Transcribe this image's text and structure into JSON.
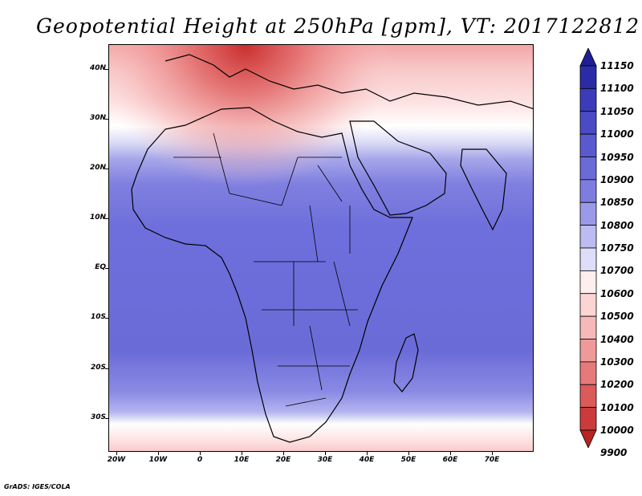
{
  "title": "Geopotential Height at 250hPa [gpm], VT: 2017122812",
  "footer": "GrADS: IGES/COLA",
  "axes": {
    "lat_labels": [
      "40N",
      "30N",
      "20N",
      "10N",
      "EQ",
      "10S",
      "20S",
      "30S"
    ],
    "lon_labels": [
      "20W",
      "10W",
      "0",
      "10E",
      "20E",
      "30E",
      "40E",
      "50E",
      "60E",
      "70E"
    ]
  },
  "legend": {
    "levels": [
      "11150",
      "11100",
      "11050",
      "11000",
      "10950",
      "10900",
      "10850",
      "10800",
      "10750",
      "10700",
      "10600",
      "10500",
      "10400",
      "10300",
      "10200",
      "10100",
      "10000",
      "9900"
    ],
    "colors": [
      "#1e1e96",
      "#2b2ba8",
      "#3c3cb9",
      "#4b4bc6",
      "#5a5acf",
      "#6b6bd8",
      "#7d7de0",
      "#9a9ae8",
      "#bcbcf2",
      "#dedefa",
      "#ffeeee",
      "#fbd4d4",
      "#f6b8b8",
      "#ef9a9a",
      "#e67a7a",
      "#dc5a5a",
      "#cc3b3b",
      "#b82424"
    ]
  },
  "map": {
    "ocean_color": "#6b6bd8",
    "land_outline": "#000000"
  }
}
